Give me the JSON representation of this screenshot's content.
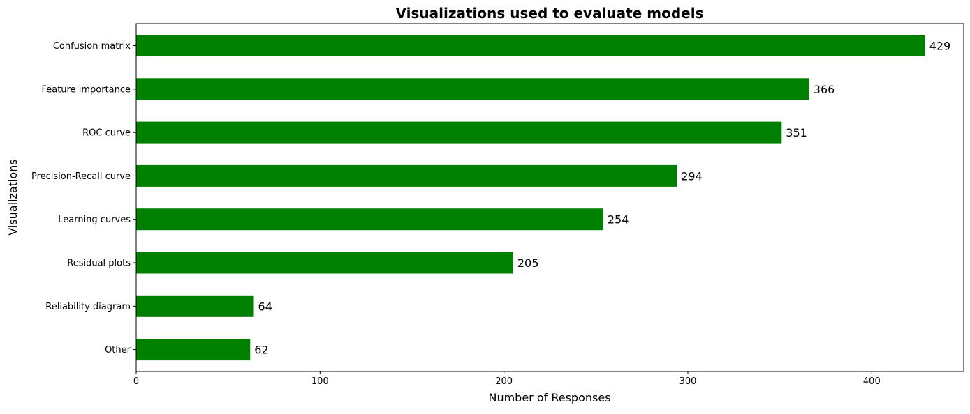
{
  "chart_data": {
    "type": "bar",
    "orientation": "horizontal",
    "title": "Visualizations used to evaluate models",
    "xlabel": "Number of Responses",
    "ylabel": "Visualizations",
    "categories": [
      "Confusion matrix",
      "Feature importance",
      "ROC curve",
      "Precision-Recall curve",
      "Learning curves",
      "Residual plots",
      "Reliability diagram",
      "Other"
    ],
    "values": [
      429,
      366,
      351,
      294,
      254,
      205,
      64,
      62
    ],
    "xlim": [
      0,
      450
    ],
    "xticks": [
      0,
      100,
      200,
      300,
      400
    ],
    "bar_color": "#008000",
    "grid": false,
    "legend": "none"
  }
}
